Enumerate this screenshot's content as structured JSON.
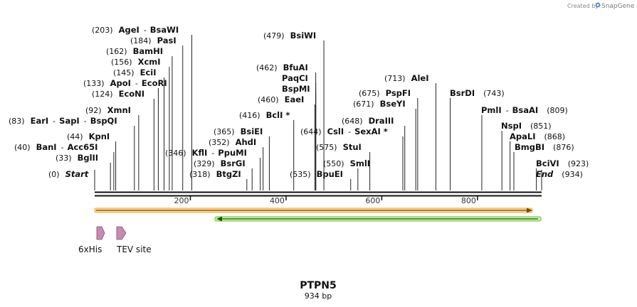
{
  "branding": {
    "created_by": "Created by",
    "app_name": "SnapGene"
  },
  "sequence": {
    "name": "PTPN5",
    "length_label": "934 bp",
    "length": 934
  },
  "ruler": {
    "ticks": [
      "200",
      "400",
      "600",
      "800"
    ]
  },
  "sites": [
    {
      "pos": "(203)",
      "name": "AgeI",
      "name2": "BsaWI",
      "bp": 203
    },
    {
      "pos": "(184)",
      "name": "PasI",
      "bp": 184
    },
    {
      "pos": "(162)",
      "name": "BamHI",
      "bp": 162
    },
    {
      "pos": "(156)",
      "name": "XcmI",
      "bp": 156
    },
    {
      "pos": "(145)",
      "name": "EciI",
      "bp": 145
    },
    {
      "pos": "(133)",
      "name": "ApoI",
      "name2": "EcoRI",
      "bp": 133
    },
    {
      "pos": "(124)",
      "name": "EcoNI",
      "bp": 124
    },
    {
      "pos": "(92)",
      "name": "XmnI",
      "bp": 92
    },
    {
      "pos": "(83)",
      "name": "EarI",
      "name2": "SapI",
      "name3": "BspQI",
      "bp": 83
    },
    {
      "pos": "(44)",
      "name": "KpnI",
      "bp": 44
    },
    {
      "pos": "(40)",
      "name": "BanI",
      "name2": "Acc65I",
      "bp": 40
    },
    {
      "pos": "(33)",
      "name": "BglII",
      "bp": 33
    },
    {
      "pos": "(0)",
      "name": "Start",
      "bp": 0
    },
    {
      "pos": "(479)",
      "name": "BsiWI",
      "bp": 479
    },
    {
      "pos": "(462)",
      "name": "BfuAI",
      "bp": 462
    },
    {
      "pos": "",
      "name": "PaqCI",
      "bp": 462
    },
    {
      "pos": "",
      "name": "BspMI",
      "bp": 462
    },
    {
      "pos": "(460)",
      "name": "EaeI",
      "bp": 460
    },
    {
      "pos": "(416)",
      "name": "BclI *",
      "bp": 416
    },
    {
      "pos": "(365)",
      "name": "BsiEI",
      "bp": 365
    },
    {
      "pos": "(352)",
      "name": "AhdI",
      "bp": 352
    },
    {
      "pos": "(346)",
      "name": "KflI",
      "name2": "PpuMI",
      "bp": 346
    },
    {
      "pos": "(329)",
      "name": "BsrGI",
      "bp": 329
    },
    {
      "pos": "(318)",
      "name": "BtgZI",
      "bp": 318
    },
    {
      "pos": "(713)",
      "name": "AleI",
      "bp": 713
    },
    {
      "pos": "(675)",
      "name": "PspFI",
      "bp": 675
    },
    {
      "pos": "(671)",
      "name": "BseYI",
      "bp": 671
    },
    {
      "pos": "(648)",
      "name": "DraIII",
      "bp": 648
    },
    {
      "pos": "(644)",
      "name": "CslI",
      "name2": "SexAI *",
      "bp": 644
    },
    {
      "pos": "(575)",
      "name": "StuI",
      "bp": 575
    },
    {
      "pos": "(550)",
      "name": "SmlI",
      "bp": 550
    },
    {
      "pos": "(535)",
      "name": "BpuEI",
      "bp": 535
    },
    {
      "pos": "(743)",
      "name": "BsrDI",
      "bp": 743
    },
    {
      "pos": "(809)",
      "name": "PmlI",
      "name2": "BsaAI",
      "bp": 809
    },
    {
      "pos": "(851)",
      "name": "NspI",
      "bp": 851
    },
    {
      "pos": "(868)",
      "name": "ApaLI",
      "bp": 868
    },
    {
      "pos": "(876)",
      "name": "BmgBI",
      "bp": 876
    },
    {
      "pos": "(923)",
      "name": "BciVI",
      "bp": 923
    },
    {
      "pos": "(934)",
      "name": "End",
      "bp": 934
    }
  ],
  "features": [
    {
      "name": "6xHis",
      "kind": "tag"
    },
    {
      "name": "TEV site",
      "kind": "tag"
    }
  ],
  "orf_colors": {
    "forward": "#f5a623",
    "forward_fill": "#f9d9a8",
    "reverse": "#5ec626",
    "reverse_fill": "#cdeeb0",
    "tag": "#c58bb0"
  }
}
